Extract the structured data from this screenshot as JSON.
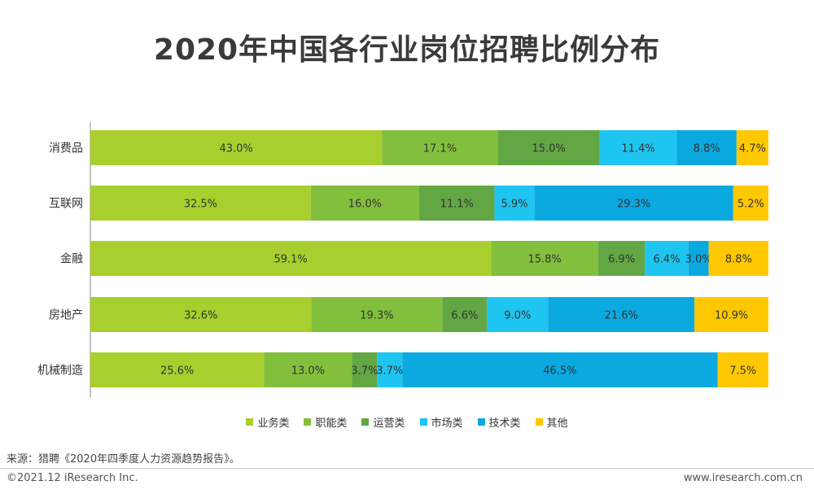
{
  "title": "2020年中国各行业岗位招聘比例分布",
  "source": "来源：猎聘《2020年四季度人力资源趋势报告》。",
  "copyright": "©2021.12 iResearch Inc.",
  "website": "www.iresearch.com.cn",
  "colors": {
    "业务类": "#a8cf2d",
    "职能类": "#82bf3d",
    "运营类": "#62a744",
    "市场类": "#1ec5f0",
    "技术类": "#0aa9e0",
    "其他": "#ffc800"
  },
  "chart_data": {
    "type": "bar",
    "orientation": "horizontal",
    "stacked": true,
    "percent": true,
    "categories": [
      "消费品",
      "互联网",
      "金融",
      "房地产",
      "机械制造"
    ],
    "series": [
      {
        "name": "业务类",
        "values": [
          43.0,
          32.5,
          59.1,
          32.6,
          25.6
        ]
      },
      {
        "name": "职能类",
        "values": [
          17.1,
          16.0,
          15.8,
          19.3,
          13.0
        ]
      },
      {
        "name": "运营类",
        "values": [
          15.0,
          11.1,
          6.9,
          6.6,
          3.7
        ]
      },
      {
        "name": "市场类",
        "values": [
          11.4,
          5.9,
          6.4,
          9.0,
          3.7
        ]
      },
      {
        "name": "技术类",
        "values": [
          8.8,
          29.3,
          3.0,
          21.6,
          46.5
        ]
      },
      {
        "name": "其他",
        "values": [
          4.7,
          5.2,
          8.8,
          10.9,
          7.5
        ]
      }
    ],
    "labels": [
      [
        "43.0%",
        "17.1%",
        "15.0%",
        "11.4%",
        "8.8%",
        "4.7%"
      ],
      [
        "32.5%",
        "16.0%",
        "11.1%",
        "5.9%",
        "29.3%",
        "5.2%"
      ],
      [
        "59.1%",
        "15.8%",
        "6.9%",
        "6.4%",
        "3.0%",
        "8.8%"
      ],
      [
        "32.6%",
        "19.3%",
        "6.6%",
        "9.0%",
        "21.6%",
        "10.9%"
      ],
      [
        "25.6%",
        "13.0%",
        "3.7%",
        "3.7%",
        "46.5%",
        "7.5%"
      ]
    ],
    "legend_position": "bottom"
  }
}
